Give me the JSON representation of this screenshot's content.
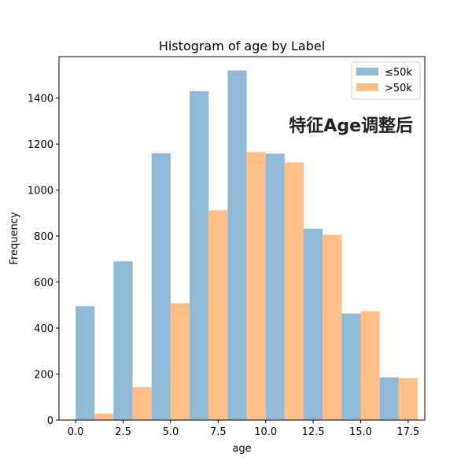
{
  "chart_data": {
    "type": "bar",
    "title": "Histogram of age by Label",
    "xlabel": "age",
    "ylabel": "Frequency",
    "xlim": [
      -0.875,
      18.375
    ],
    "ylim": [
      0,
      1580
    ],
    "x_ticks": [
      0.0,
      2.5,
      5.0,
      7.5,
      10.0,
      12.5,
      15.0,
      17.5
    ],
    "x_tick_labels": [
      "0.0",
      "2.5",
      "5.0",
      "7.5",
      "10.0",
      "12.5",
      "15.0",
      "17.5"
    ],
    "y_ticks": [
      0,
      200,
      400,
      600,
      800,
      1000,
      1200,
      1400
    ],
    "y_tick_labels": [
      "0",
      "200",
      "400",
      "600",
      "800",
      "1000",
      "1200",
      "1400"
    ],
    "bin_edges": [
      0,
      2,
      4,
      6,
      8,
      10,
      12,
      14,
      16,
      18
    ],
    "series": [
      {
        "name": "≤50k",
        "color": "#8fbbd9",
        "values": [
          495,
          690,
          1160,
          1430,
          1520,
          1158,
          832,
          463,
          186
        ]
      },
      {
        "name": ">50k",
        "color": "#ffbf86",
        "values": [
          28,
          143,
          508,
          912,
          1165,
          1120,
          805,
          473,
          182
        ]
      }
    ],
    "legend_position": "top-right",
    "grid": false,
    "annotation": "特征Age调整后"
  }
}
